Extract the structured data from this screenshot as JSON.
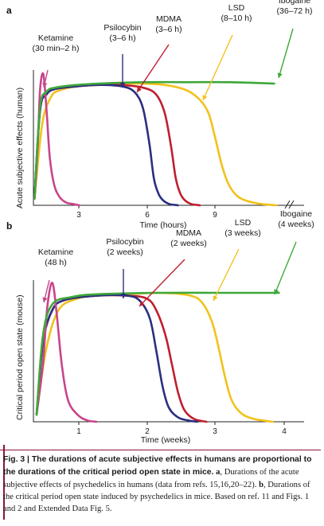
{
  "chart_data": [
    {
      "panel": "a",
      "type": "line",
      "xlabel": "Time (hours)",
      "ylabel": "Acute subjective effects (human)",
      "xticks": [
        "3",
        "6",
        "9"
      ],
      "xlim": [
        0,
        12
      ],
      "ylim": [
        0,
        1
      ],
      "series": [
        {
          "name": "Ketamine",
          "duration": "(30 min–2 h)",
          "color": "#c8458a",
          "x": [
            0.05,
            0.2,
            0.3,
            0.45,
            0.6,
            0.75,
            0.95,
            1.2,
            1.5,
            1.8,
            2.1
          ],
          "y": [
            0.05,
            0.45,
            0.85,
            0.97,
            0.7,
            0.35,
            0.15,
            0.06,
            0.02,
            0.01,
            0.0
          ]
        },
        {
          "name": "Psilocybin",
          "duration": "(3–6 h)",
          "color": "#2b2f7f",
          "x": [
            0.05,
            0.3,
            0.6,
            1.0,
            2.0,
            3.0,
            4.0,
            4.6,
            5.0,
            5.3,
            5.5,
            5.7,
            5.9,
            6.2,
            6.6
          ],
          "y": [
            0.05,
            0.7,
            0.82,
            0.86,
            0.88,
            0.89,
            0.88,
            0.84,
            0.72,
            0.45,
            0.2,
            0.09,
            0.04,
            0.01,
            0.0
          ]
        },
        {
          "name": "MDMA",
          "duration": "(3–6 h)",
          "color": "#c01f2f",
          "x": [
            0.05,
            0.3,
            0.6,
            1.0,
            2.0,
            3.0,
            4.0,
            5.0,
            5.6,
            6.0,
            6.3,
            6.5,
            6.7,
            6.9,
            7.2,
            7.6
          ],
          "y": [
            0.05,
            0.7,
            0.82,
            0.86,
            0.88,
            0.89,
            0.89,
            0.87,
            0.82,
            0.68,
            0.42,
            0.2,
            0.09,
            0.04,
            0.01,
            0.0
          ]
        },
        {
          "name": "LSD",
          "duration": "(8–10 h)",
          "color": "#f2c21b",
          "x": [
            0.05,
            0.4,
            0.8,
            1.2,
            2.0,
            3.0,
            4.0,
            5.0,
            6.0,
            7.0,
            7.6,
            8.0,
            8.3,
            8.6,
            8.9,
            9.3,
            9.8,
            10.4,
            11.1
          ],
          "y": [
            0.05,
            0.6,
            0.8,
            0.85,
            0.88,
            0.89,
            0.9,
            0.9,
            0.89,
            0.85,
            0.78,
            0.68,
            0.5,
            0.3,
            0.16,
            0.07,
            0.03,
            0.01,
            0.0
          ]
        },
        {
          "name": "Ibogaine",
          "duration": "(36–72 h)",
          "color": "#3ea83a",
          "x": [
            0.05,
            0.3,
            0.6,
            1.0,
            2.0,
            3.0,
            5.0,
            7.0,
            9.0,
            11.0
          ],
          "y": [
            0.05,
            0.72,
            0.84,
            0.87,
            0.89,
            0.9,
            0.91,
            0.91,
            0.91,
            0.9
          ]
        }
      ]
    },
    {
      "panel": "b",
      "type": "line",
      "xlabel": "Time (weeks)",
      "ylabel": "Critical period open state (mouse)",
      "xticks": [
        "1",
        "2",
        "3",
        "4"
      ],
      "xlim": [
        0,
        4.3
      ],
      "ylim": [
        0,
        1
      ],
      "series": [
        {
          "name": "Ketamine",
          "duration": "(48 h)",
          "color": "#c8458a",
          "x": [
            0.05,
            0.15,
            0.22,
            0.3,
            0.37,
            0.45,
            0.55,
            0.7,
            0.85,
            1.0
          ],
          "y": [
            0.05,
            0.4,
            0.8,
            0.97,
            0.75,
            0.4,
            0.15,
            0.05,
            0.01,
            0.0
          ]
        },
        {
          "name": "Psilocybin",
          "duration": "(2 weeks)",
          "color": "#2b2f7f",
          "x": [
            0.05,
            0.15,
            0.3,
            0.5,
            1.0,
            1.5,
            1.7,
            1.85,
            1.95,
            2.05,
            2.15,
            2.3,
            2.45,
            2.6
          ],
          "y": [
            0.05,
            0.55,
            0.78,
            0.85,
            0.88,
            0.88,
            0.84,
            0.72,
            0.5,
            0.25,
            0.1,
            0.03,
            0.01,
            0.0
          ]
        },
        {
          "name": "MDMA",
          "duration": "(2 weeks)",
          "color": "#c01f2f",
          "x": [
            0.05,
            0.15,
            0.3,
            0.5,
            1.0,
            1.5,
            1.8,
            1.95,
            2.1,
            2.2,
            2.3,
            2.4,
            2.55,
            2.75
          ],
          "y": [
            0.05,
            0.55,
            0.78,
            0.85,
            0.88,
            0.88,
            0.86,
            0.78,
            0.6,
            0.4,
            0.2,
            0.08,
            0.02,
            0.0
          ]
        },
        {
          "name": "LSD",
          "duration": "(3 weeks)",
          "color": "#f2c21b",
          "x": [
            0.05,
            0.2,
            0.4,
            0.7,
            1.0,
            1.5,
            2.0,
            2.5,
            2.7,
            2.85,
            2.95,
            3.05,
            3.15,
            3.3,
            3.5,
            3.8
          ],
          "y": [
            0.05,
            0.5,
            0.78,
            0.86,
            0.88,
            0.89,
            0.9,
            0.88,
            0.82,
            0.68,
            0.5,
            0.3,
            0.15,
            0.06,
            0.02,
            0.0
          ]
        },
        {
          "name": "Ibogaine",
          "duration": "(4 weeks)",
          "color": "#3ea83a",
          "x": [
            0.05,
            0.15,
            0.3,
            0.6,
            1.0,
            2.0,
            3.0,
            3.9
          ],
          "y": [
            0.05,
            0.6,
            0.82,
            0.87,
            0.89,
            0.9,
            0.9,
            0.9
          ]
        }
      ]
    }
  ],
  "caption": {
    "lead": "Fig. 3 | The durations of acute subjective effects in humans are proportional to the durations of the critical period open state in mice.",
    "body_a_label": "a",
    "body_a": ", Durations of the acute subjective effects of psychedelics in humans (data from refs. 15,16,20–22).",
    "body_b_label": "b",
    "body_b": ", Durations of the critical period open state induced by psychedelics in mice. Based on ref. 11 and Figs. 1 and 2 and Extended Data Fig. 5."
  }
}
